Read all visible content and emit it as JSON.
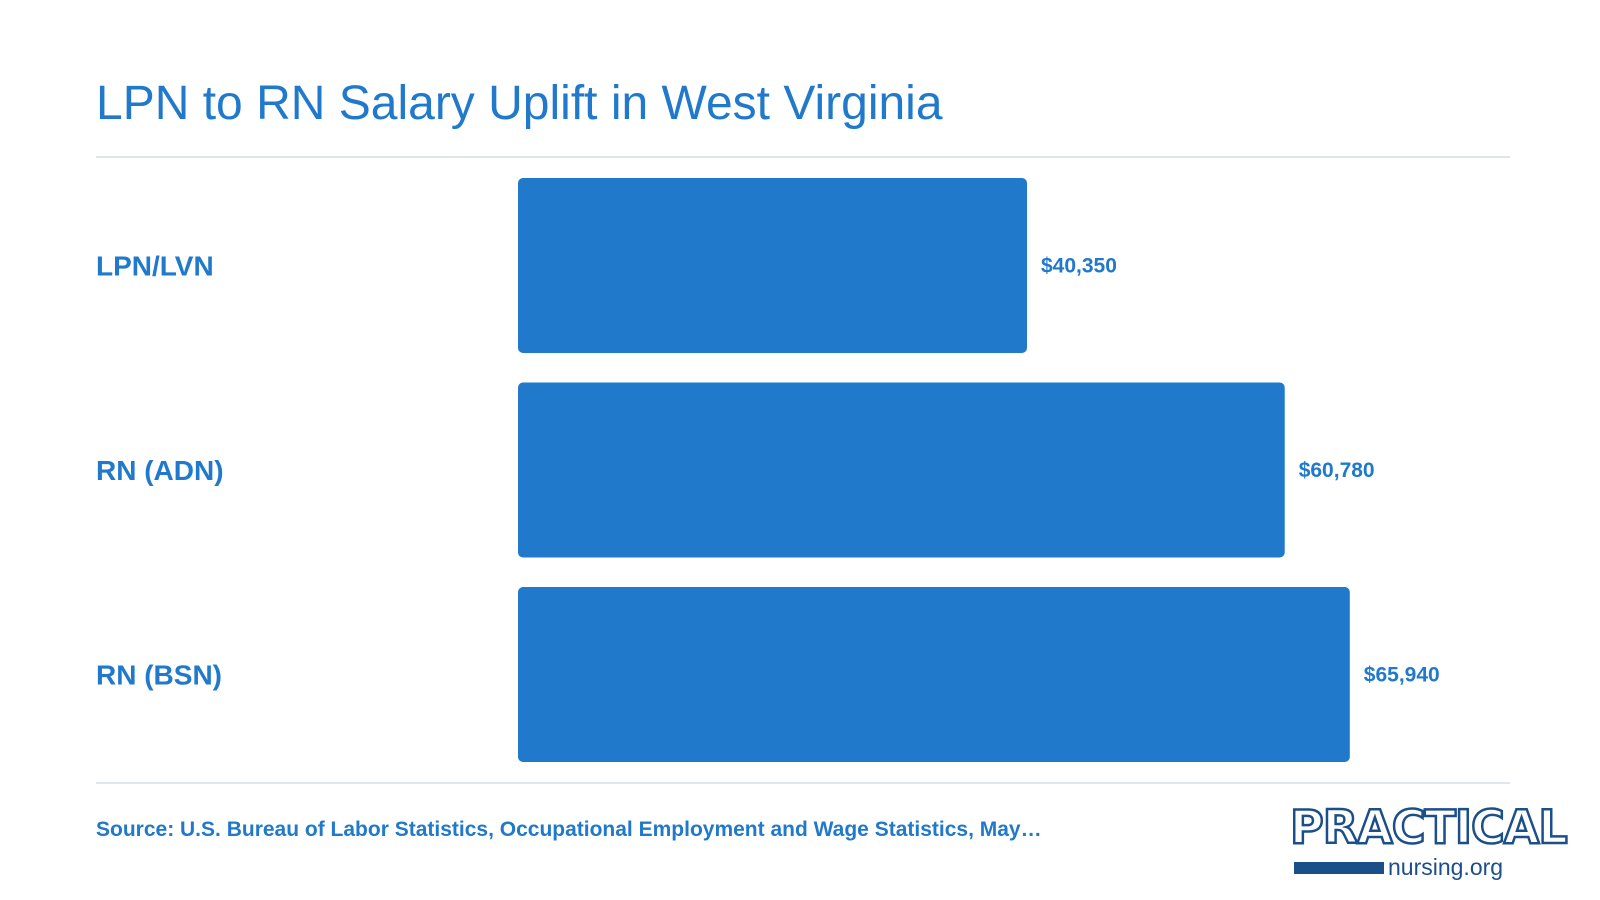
{
  "title": "LPN to RN Salary Uplift in West Virginia",
  "source": "Source: U.S. Bureau of Labor Statistics, Occupational Employment and Wage Statistics, May…",
  "logo": {
    "word": "PRACTICAL",
    "sub": "nursing.org"
  },
  "colors": {
    "accent": "#2179cb",
    "bar": "#2179cb",
    "rule": "#dde6ec",
    "logo": "#1b4f8a"
  },
  "chart_data": {
    "type": "bar",
    "orientation": "horizontal",
    "categories": [
      "LPN/LVN",
      "RN (ADN)",
      "RN (BSN)"
    ],
    "values": [
      40350,
      60780,
      65940
    ],
    "value_labels": [
      "$40,350",
      "$60,780",
      "$65,940"
    ],
    "title": "LPN to RN Salary Uplift in West Virginia",
    "xlabel": "",
    "ylabel": "",
    "grid": false,
    "legend": "none"
  }
}
